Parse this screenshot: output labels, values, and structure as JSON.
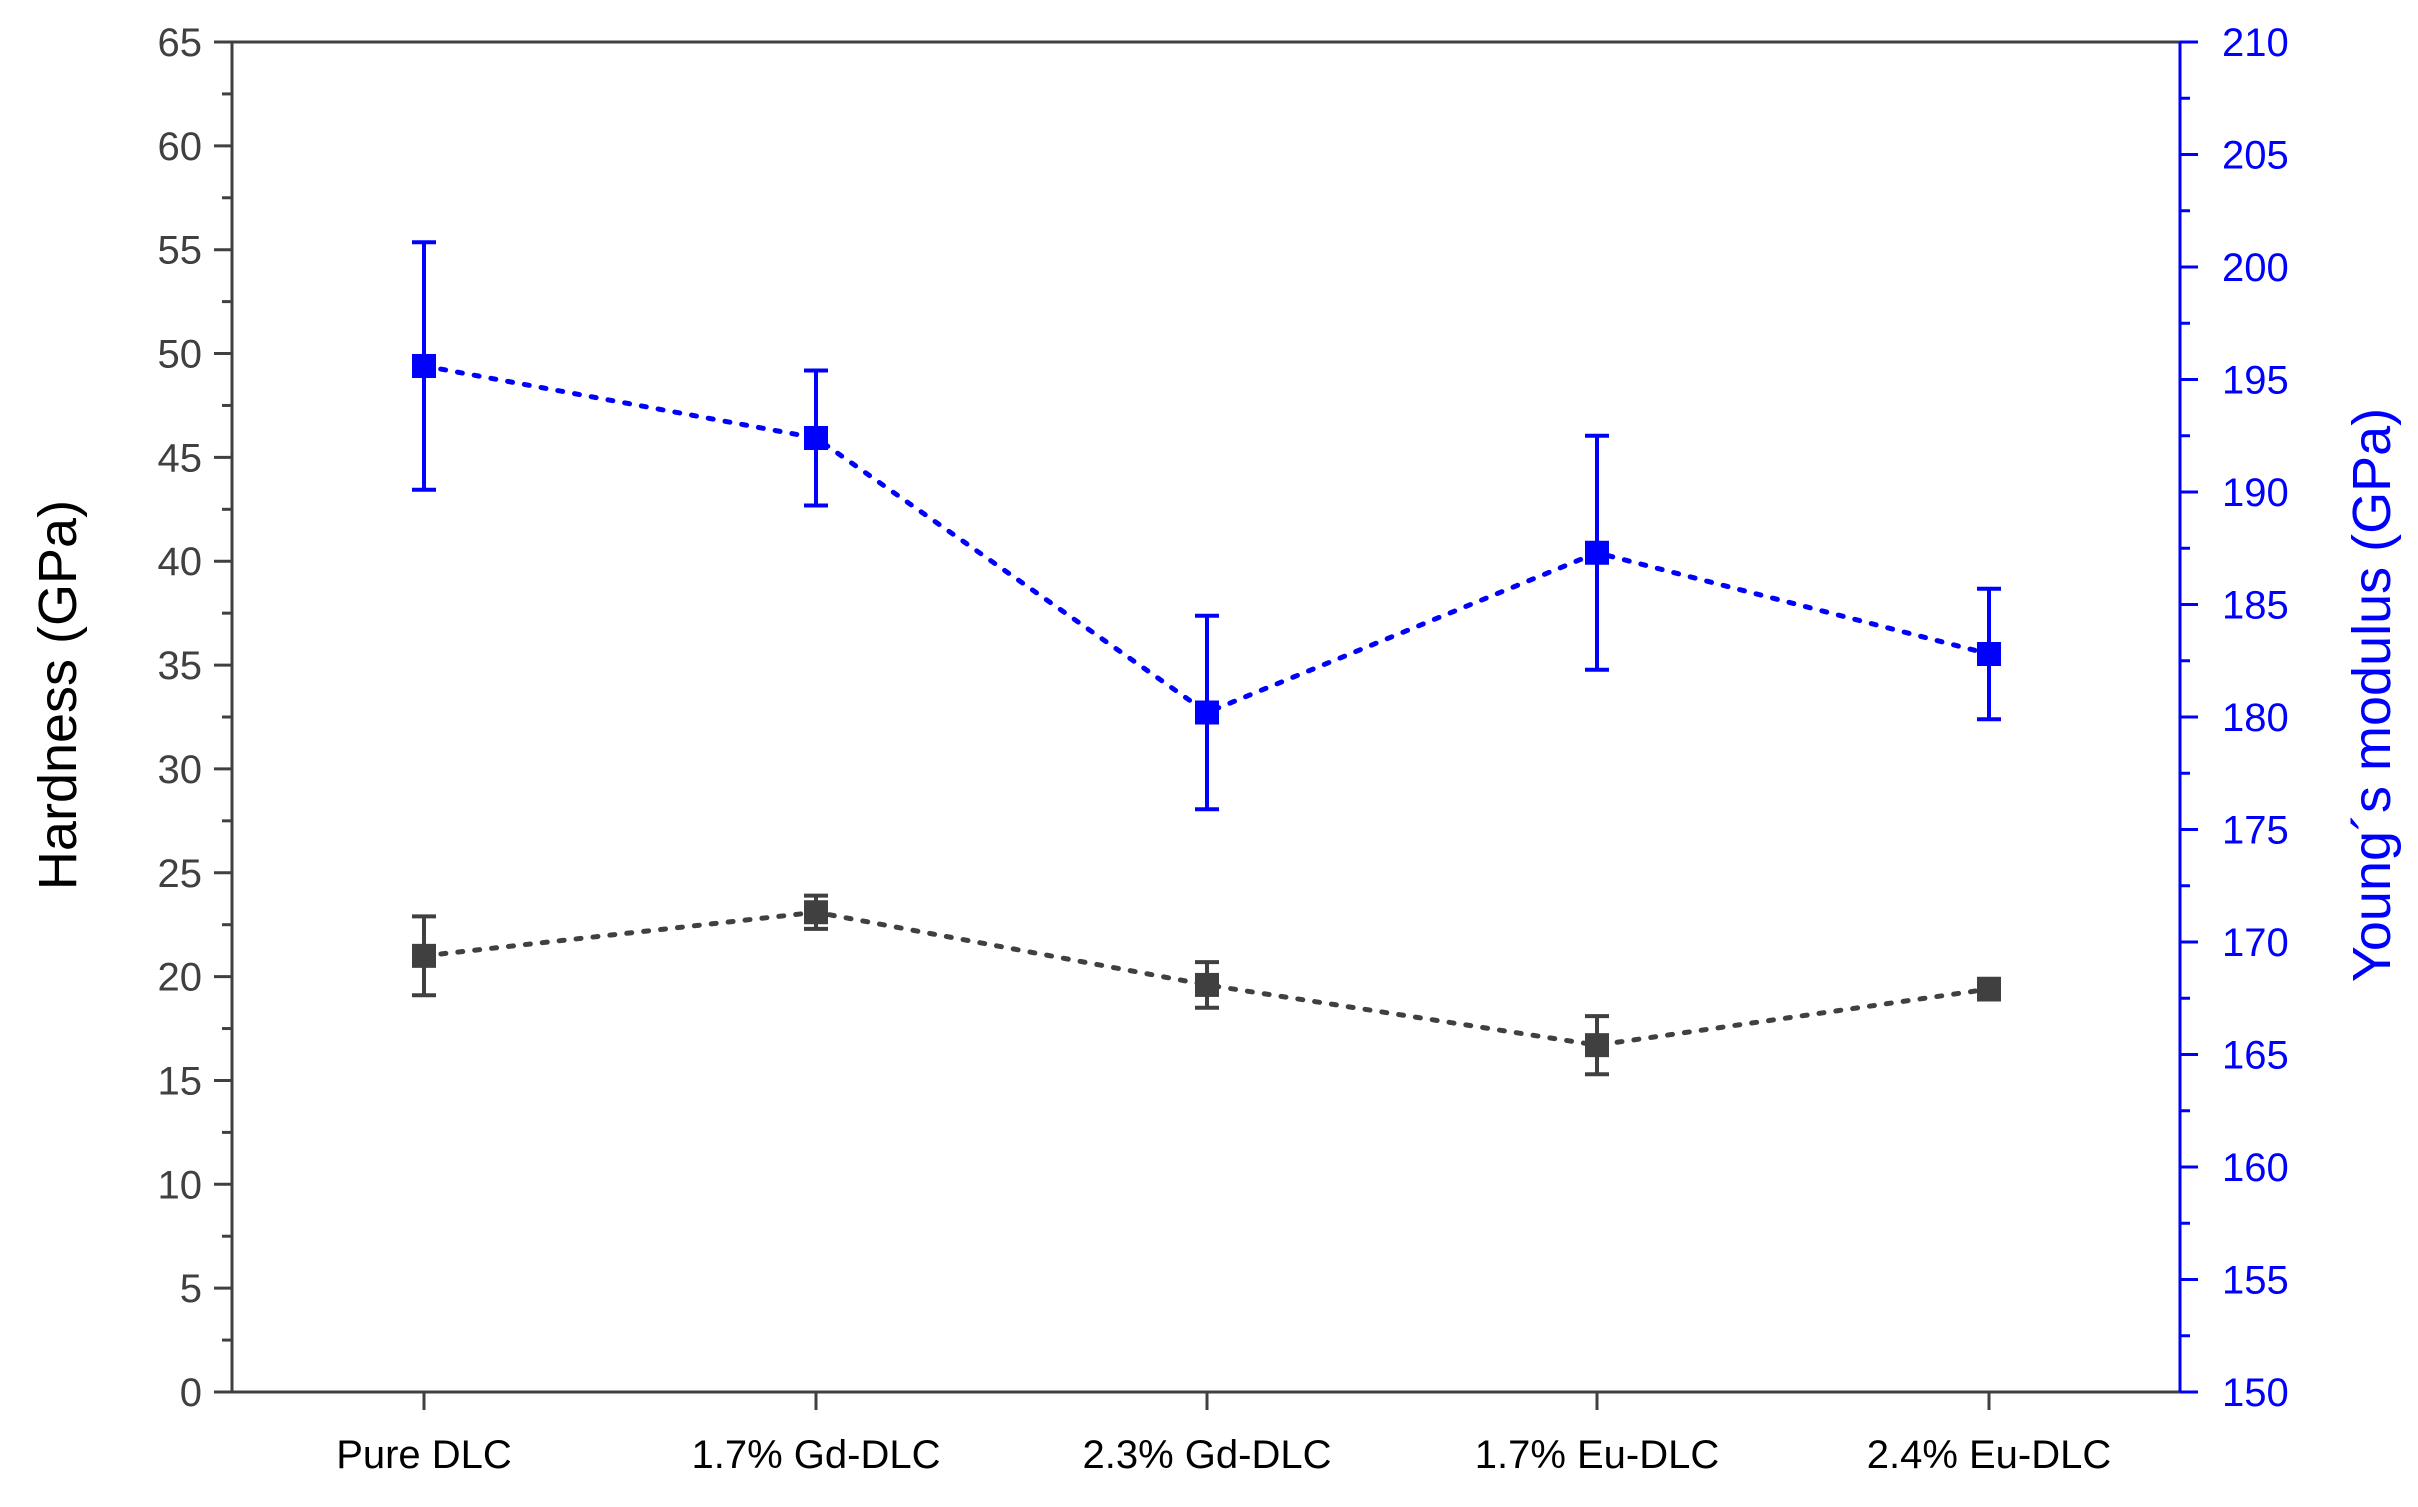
{
  "chart_data": {
    "type": "line",
    "categories": [
      "Pure DLC",
      "1.7% Gd-DLC",
      "2.3% Gd-DLC",
      "1.7% Eu-DLC",
      "2.4% Eu-DLC"
    ],
    "ylabel": "Hardness (GPa)",
    "y2label": "Young´s modulus (GPa)",
    "ylim": [
      0,
      65
    ],
    "y2lim": [
      150,
      210
    ],
    "yticks": [
      0,
      5,
      10,
      15,
      20,
      25,
      30,
      35,
      40,
      45,
      50,
      55,
      60,
      65
    ],
    "y2ticks": [
      150,
      155,
      160,
      165,
      170,
      175,
      180,
      185,
      190,
      195,
      200,
      205,
      210
    ],
    "series": [
      {
        "name": "Hardness",
        "axis": "left",
        "color": "#404040",
        "line_style": "dotted",
        "marker": "square",
        "values": [
          21.0,
          23.1,
          19.6,
          16.7,
          19.4
        ],
        "errors": [
          1.9,
          0.8,
          1.1,
          1.4,
          0.5
        ]
      },
      {
        "name": "Young´s modulus",
        "axis": "right",
        "color": "#0000ff",
        "line_style": "dotted",
        "marker": "square",
        "values": [
          195.6,
          192.4,
          180.2,
          187.3,
          182.8
        ],
        "errors": [
          5.5,
          3.0,
          4.3,
          5.2,
          2.9
        ]
      }
    ]
  }
}
